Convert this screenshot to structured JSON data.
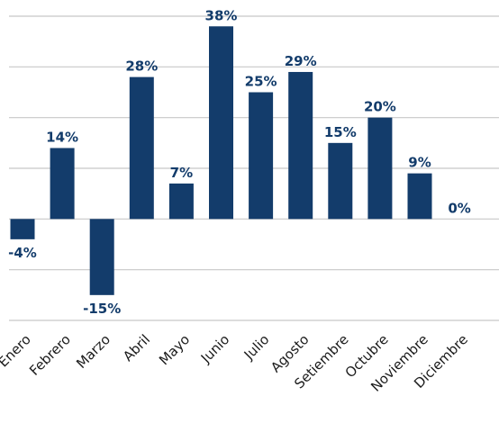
{
  "chart_data": {
    "type": "bar",
    "title": "",
    "xlabel": "",
    "ylabel": "",
    "categories": [
      "Enero",
      "Febrero",
      "Marzo",
      "Abril",
      "Mayo",
      "Junio",
      "Julio",
      "Agosto",
      "Setiembre",
      "Octubre",
      "Noviembre",
      "Diciembre"
    ],
    "values": [
      -4,
      14,
      -15,
      28,
      7,
      38,
      25,
      29,
      15,
      20,
      9,
      0
    ],
    "data_labels": [
      "-4%",
      "14%",
      "-15%",
      "28%",
      "7%",
      "38%",
      "25%",
      "29%",
      "15%",
      "20%",
      "9%",
      "0%"
    ],
    "ylim": [
      -20,
      40
    ],
    "gridlines": [
      -20,
      -10,
      0,
      10,
      20,
      30,
      40
    ],
    "grid": true,
    "legend": "none",
    "colors": {
      "bar": "#133c6b",
      "label": "#133c6b",
      "grid": "#c8c8c8",
      "axis_text": "#1a1a1a"
    }
  }
}
